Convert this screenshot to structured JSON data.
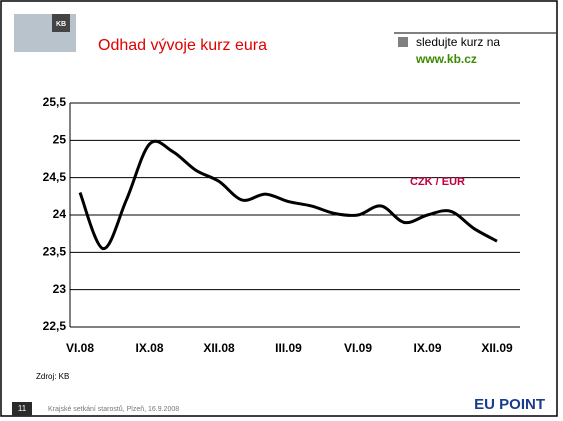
{
  "slide": {
    "logo": "KB",
    "note": "sledujte kurz na",
    "link": "www.kb.cz",
    "page": "11",
    "footer": "Krajské setkání starostů, Plzeň, 16.9.2008",
    "brand": "EU POINT"
  },
  "chart_data": {
    "type": "line",
    "title": "Odhad vývoje kurz eura",
    "annotation": "CZK / EUR",
    "source": "Zdroj: KB",
    "categories": [
      "VI.08",
      null,
      null,
      "IX.08",
      null,
      null,
      "XII.08",
      null,
      null,
      "III.09",
      null,
      null,
      "VI.09",
      null,
      null,
      "IX.09",
      null,
      null,
      "XII.09"
    ],
    "series": [
      {
        "name": "CZK / EUR",
        "color": "#000000",
        "values": [
          24.3,
          23.55,
          24.2,
          24.95,
          24.85,
          24.6,
          24.45,
          24.2,
          24.28,
          24.18,
          24.12,
          24.02,
          24.0,
          24.12,
          23.9,
          24.0,
          24.05,
          23.82,
          23.65
        ]
      }
    ],
    "ylim": [
      22.5,
      25.5
    ],
    "yticks": [
      {
        "value": 22.5,
        "label": "22,5"
      },
      23,
      {
        "value": 23.5,
        "label": "23,5"
      },
      24,
      {
        "value": 24.5,
        "label": "24,5"
      },
      25,
      {
        "value": 25.5,
        "label": "25,5"
      }
    ],
    "grid": true
  }
}
